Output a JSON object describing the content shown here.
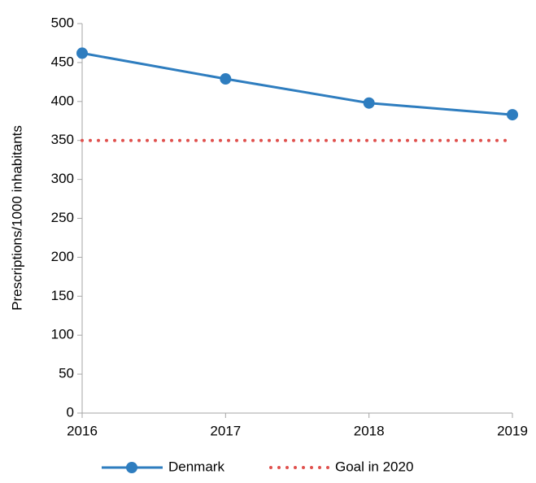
{
  "chart_data": {
    "type": "line",
    "y_label": "Prescriptions/1000 inhabitants",
    "x": [
      2016,
      2017,
      2018,
      2019
    ],
    "series": [
      {
        "name": "Denmark",
        "color": "#2e7dbf",
        "values": [
          462,
          429,
          398,
          383
        ],
        "style": "solid",
        "marker": "circle"
      },
      {
        "name": "Goal in 2020",
        "color": "#e0504d",
        "values": [
          350,
          350,
          350,
          350
        ],
        "style": "dotted"
      }
    ],
    "xlim": [
      2016,
      2019
    ],
    "xticks": [
      2016,
      2017,
      2018,
      2019
    ],
    "ylim": [
      0,
      500
    ],
    "yticks": [
      0,
      50,
      100,
      150,
      200,
      250,
      300,
      350,
      400,
      450,
      500
    ],
    "grid": false,
    "legend": "bottom"
  }
}
